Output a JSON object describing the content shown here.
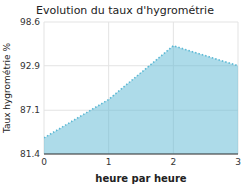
{
  "chart_data": {
    "type": "area",
    "title": "Evolution du taux d'hygrométrie",
    "x_label": "heure par heure",
    "y_label": "Taux hygrométrie %",
    "x": [
      0,
      1,
      2,
      3
    ],
    "values": [
      83.5,
      88.5,
      95.5,
      92.9
    ],
    "xlim": [
      0,
      3
    ],
    "ylim": [
      81.4,
      98.6
    ],
    "xticks": [
      0,
      1,
      2,
      3
    ],
    "yticks": [
      81.4,
      87.1,
      92.9,
      98.6
    ],
    "color": "#5bb8d4",
    "line_style": "dotted",
    "grid": true
  }
}
